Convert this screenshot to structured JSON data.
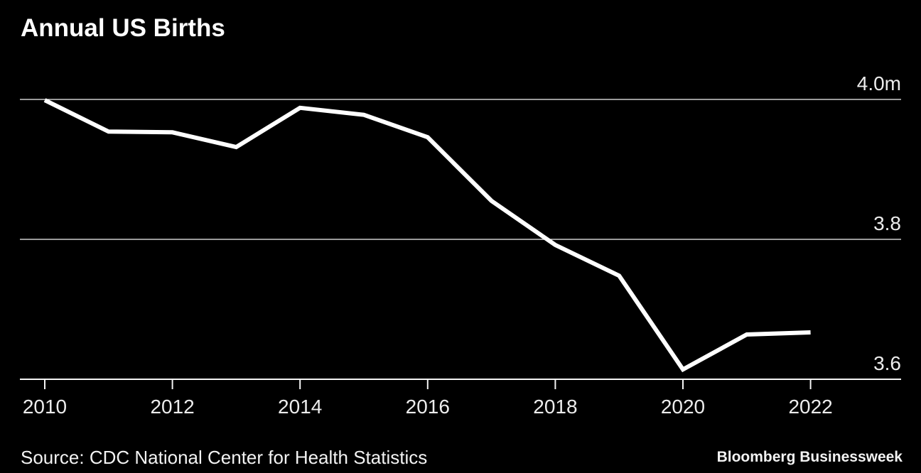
{
  "page": {
    "title": "Annual US Births",
    "source_note": "Source: CDC National Center for Health Statistics",
    "credit": "Bloomberg Businessweek"
  },
  "colors": {
    "background": "#000000",
    "line": "#ffffff",
    "grid": "#f5f5f5",
    "axis": "#f5f5f5",
    "tick_label": "#ececec",
    "title_text": "#ffffff",
    "footer_text": "#f2f2f2"
  },
  "chart_data": {
    "type": "line",
    "title": "Annual US Births",
    "xlabel": "",
    "ylabel": "",
    "unit": "millions of births",
    "x": [
      2010,
      2011,
      2012,
      2013,
      2014,
      2015,
      2016,
      2017,
      2018,
      2019,
      2020,
      2021,
      2022
    ],
    "values": [
      3.999,
      3.954,
      3.953,
      3.932,
      3.988,
      3.978,
      3.946,
      3.855,
      3.792,
      3.748,
      3.614,
      3.664,
      3.667
    ],
    "series_name": "Annual US births",
    "xticks": [
      2010,
      2012,
      2014,
      2016,
      2018,
      2020,
      2022
    ],
    "yticks": [
      {
        "value": 4.0,
        "label": "4.0m"
      },
      {
        "value": 3.8,
        "label": "3.8"
      },
      {
        "value": 3.6,
        "label": "3.6"
      }
    ],
    "xlim": [
      2010,
      2022
    ],
    "ylim": [
      3.6,
      4.0
    ],
    "grid": true,
    "legend": false,
    "gridline_style": "horizontal only, labels above-right of each line, bottom gridline doubles as x-axis"
  }
}
